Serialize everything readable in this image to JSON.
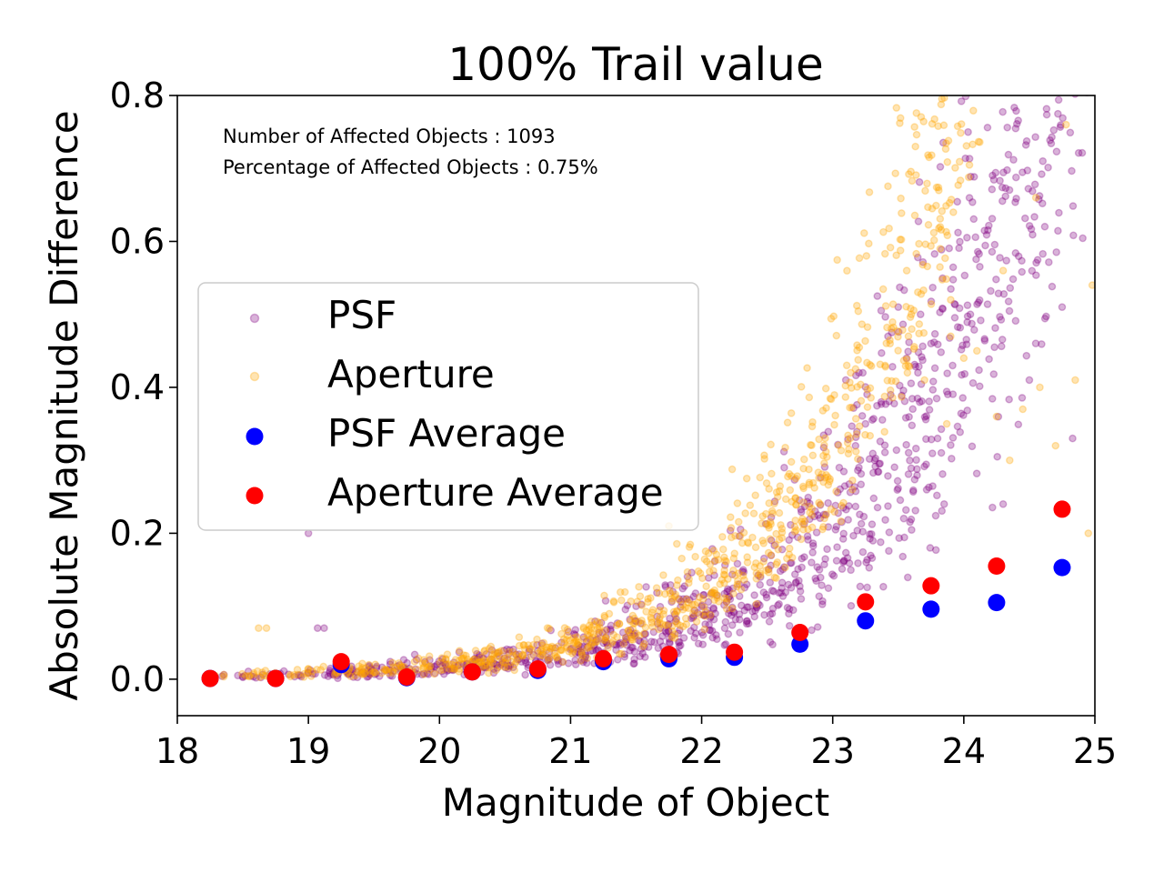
{
  "chart_data": {
    "type": "scatter",
    "title": "100% Trail value",
    "xlabel": "Magnitude of Object",
    "ylabel": "Absolute Magnitude Difference",
    "xlim": [
      18,
      25
    ],
    "ylim": [
      -0.05,
      0.8
    ],
    "xticks": [
      18,
      19,
      20,
      21,
      22,
      23,
      24,
      25
    ],
    "yticks": [
      0.0,
      0.2,
      0.4,
      0.6,
      0.8
    ],
    "xtick_labels": [
      "18",
      "19",
      "20",
      "21",
      "22",
      "23",
      "24",
      "25"
    ],
    "ytick_labels": [
      "0.0",
      "0.2",
      "0.4",
      "0.6",
      "0.8"
    ],
    "grid": false,
    "legend_placement": "center-left",
    "annotations": [
      "Number of Affected Objects : 1093",
      "Percentage of Affected Objects : 0.75%"
    ],
    "series": [
      {
        "name": "PSF",
        "kind": "scatter-cloud",
        "color": "#800080",
        "alpha": 0.3,
        "count": 1093,
        "outliers": [
          [
            23.5,
            0.51
          ],
          [
            23.75,
            0.46
          ],
          [
            23.67,
            0.5
          ],
          [
            24.05,
            0.5
          ],
          [
            23.1,
            0.41
          ],
          [
            23.2,
            0.42
          ],
          [
            23.37,
            0.38
          ],
          [
            23.8,
            0.33
          ],
          [
            24.75,
            0.51
          ],
          [
            24.5,
            0.41
          ],
          [
            24.3,
            0.24
          ],
          [
            22.63,
            0.29
          ],
          [
            23.05,
            0.29
          ],
          [
            23.25,
            0.35
          ],
          [
            23.32,
            0.3
          ],
          [
            19.0,
            0.2
          ],
          [
            19.07,
            0.07
          ],
          [
            19.12,
            0.07
          ],
          [
            21.78,
            0.12
          ],
          [
            21.86,
            0.11
          ],
          [
            20.4,
            0.04
          ],
          [
            21.5,
            0.1
          ],
          [
            24.83,
            0.33
          ],
          [
            23.65,
            0.42
          ],
          [
            23.85,
            0.24
          ]
        ]
      },
      {
        "name": "Aperture",
        "kind": "scatter-cloud",
        "color": "#FFA500",
        "alpha": 0.3,
        "count": 1093,
        "outliers": [
          [
            24.78,
            0.76
          ],
          [
            24.55,
            0.66
          ],
          [
            23.92,
            0.64
          ],
          [
            23.82,
            0.62
          ],
          [
            23.82,
            0.59
          ],
          [
            24.3,
            0.56
          ],
          [
            24.98,
            0.54
          ],
          [
            23.9,
            0.52
          ],
          [
            23.6,
            0.5
          ],
          [
            24.1,
            0.45
          ],
          [
            23.9,
            0.47
          ],
          [
            23.57,
            0.42
          ],
          [
            23.7,
            0.41
          ],
          [
            24.0,
            0.44
          ],
          [
            23.4,
            0.43
          ],
          [
            24.85,
            0.41
          ],
          [
            24.58,
            0.4
          ],
          [
            24.45,
            0.37
          ],
          [
            23.87,
            0.35
          ],
          [
            24.25,
            0.36
          ],
          [
            24.35,
            0.3
          ],
          [
            24.7,
            0.32
          ],
          [
            23.15,
            0.26
          ],
          [
            22.95,
            0.28
          ],
          [
            21.75,
            0.21
          ],
          [
            18.62,
            0.07
          ],
          [
            18.68,
            0.07
          ],
          [
            22.35,
            0.16
          ],
          [
            22.53,
            0.17
          ],
          [
            24.95,
            0.2
          ]
        ]
      },
      {
        "name": "PSF Average",
        "kind": "points",
        "color": "#0000FF",
        "x": [
          18.25,
          18.75,
          19.25,
          19.75,
          20.25,
          20.75,
          21.25,
          21.75,
          22.25,
          22.75,
          23.25,
          23.75,
          24.25,
          24.75
        ],
        "y": [
          0.001,
          0.001,
          0.02,
          0.002,
          0.01,
          0.012,
          0.024,
          0.028,
          0.03,
          0.048,
          0.08,
          0.096,
          0.105,
          0.153
        ]
      },
      {
        "name": "Aperture Average",
        "kind": "points",
        "color": "#FF0000",
        "x": [
          18.25,
          18.75,
          19.25,
          19.75,
          20.25,
          20.75,
          21.25,
          21.75,
          22.25,
          22.75,
          23.25,
          23.75,
          24.25,
          24.75
        ],
        "y": [
          0.001,
          0.001,
          0.024,
          0.003,
          0.01,
          0.014,
          0.028,
          0.034,
          0.037,
          0.064,
          0.106,
          0.128,
          0.155,
          0.233
        ]
      }
    ]
  }
}
